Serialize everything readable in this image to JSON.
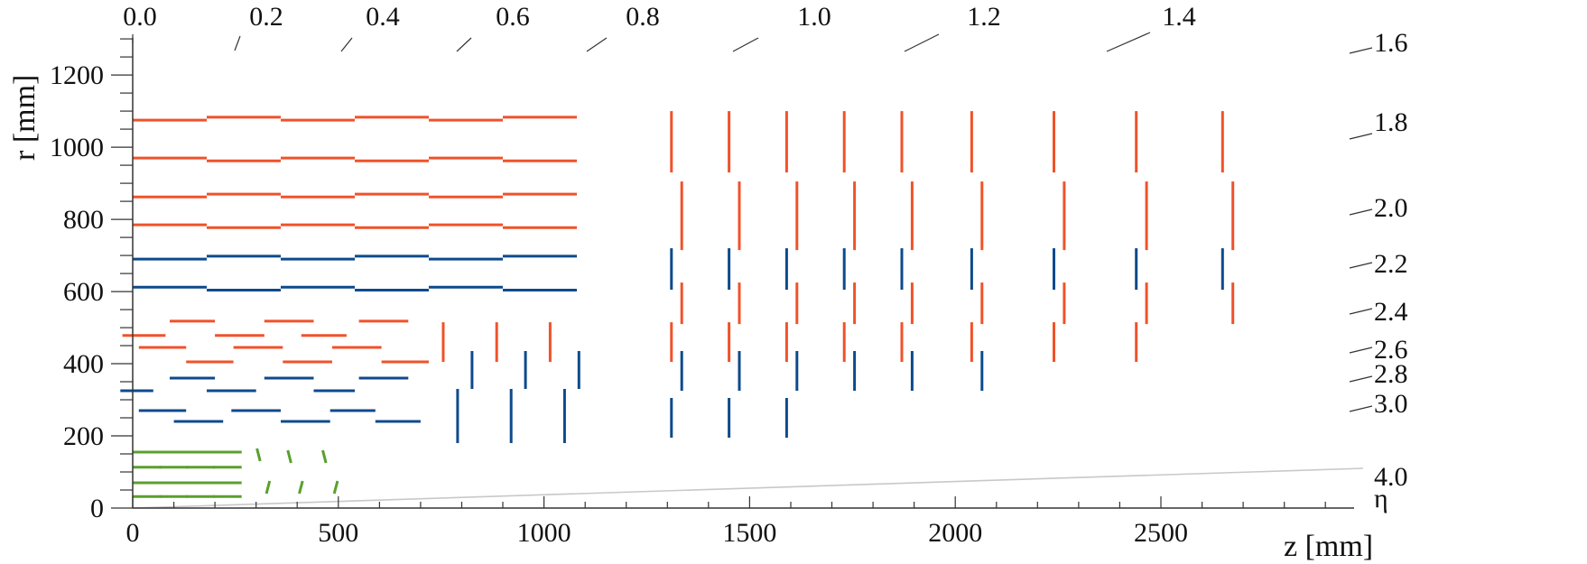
{
  "colors": {
    "strip": "#f0522a",
    "pixel": "#0d4a8c",
    "inner": "#5aa02c",
    "axis": "#333333",
    "eta_line": "#c8c8c8"
  },
  "axes": {
    "xlabel": "z [mm]",
    "ylabel": "r [mm]",
    "xlim": [
      0,
      2900
    ],
    "ylim": [
      0,
      1300
    ],
    "x_ticks": [
      "0",
      "500",
      "1000",
      "1500",
      "2000",
      "2500"
    ],
    "y_ticks": [
      "0",
      "200",
      "400",
      "600",
      "800",
      "1000",
      "1200"
    ],
    "eta_symbol": "η",
    "eta_top": [
      "0.0",
      "0.2",
      "0.4",
      "0.6",
      "0.8",
      "1.0",
      "1.2",
      "1.4"
    ],
    "eta_right": [
      "1.6",
      "1.8",
      "2.0",
      "2.2",
      "2.4",
      "2.6",
      "2.8",
      "3.0",
      "4.0"
    ]
  },
  "chart_data": {
    "type": "diagram",
    "barrel_layers": [
      {
        "detector": "strip",
        "segments": [
          [
            0,
            180,
            1075
          ],
          [
            180,
            360,
            1083
          ],
          [
            360,
            540,
            1075
          ],
          [
            540,
            720,
            1083
          ],
          [
            720,
            900,
            1075
          ],
          [
            900,
            1080,
            1083
          ]
        ]
      },
      {
        "detector": "strip",
        "segments": [
          [
            0,
            180,
            970
          ],
          [
            180,
            360,
            962
          ],
          [
            360,
            540,
            970
          ],
          [
            540,
            720,
            962
          ],
          [
            720,
            900,
            970
          ],
          [
            900,
            1080,
            962
          ]
        ]
      },
      {
        "detector": "strip",
        "segments": [
          [
            0,
            180,
            862
          ],
          [
            180,
            360,
            870
          ],
          [
            360,
            540,
            862
          ],
          [
            540,
            720,
            870
          ],
          [
            720,
            900,
            862
          ],
          [
            900,
            1080,
            870
          ]
        ]
      },
      {
        "detector": "strip",
        "segments": [
          [
            0,
            180,
            785
          ],
          [
            180,
            360,
            777
          ],
          [
            360,
            540,
            785
          ],
          [
            540,
            720,
            777
          ],
          [
            720,
            900,
            785
          ],
          [
            900,
            1080,
            777
          ]
        ]
      },
      {
        "detector": "pixel",
        "segments": [
          [
            0,
            180,
            690
          ],
          [
            180,
            360,
            698
          ],
          [
            360,
            540,
            690
          ],
          [
            540,
            720,
            698
          ],
          [
            720,
            900,
            690
          ],
          [
            900,
            1080,
            698
          ]
        ]
      },
      {
        "detector": "pixel",
        "segments": [
          [
            0,
            180,
            612
          ],
          [
            180,
            360,
            604
          ],
          [
            360,
            540,
            612
          ],
          [
            540,
            720,
            604
          ],
          [
            720,
            900,
            612
          ],
          [
            900,
            1080,
            604
          ]
        ]
      },
      {
        "detector": "strip",
        "segments": [
          [
            -25,
            80,
            478
          ],
          [
            90,
            200,
            518
          ],
          [
            200,
            320,
            478
          ],
          [
            320,
            440,
            518
          ],
          [
            410,
            520,
            478
          ],
          [
            550,
            670,
            518
          ]
        ]
      },
      {
        "detector": "strip",
        "segments": [
          [
            15,
            130,
            445
          ],
          [
            130,
            245,
            405
          ],
          [
            245,
            365,
            445
          ],
          [
            365,
            485,
            405
          ],
          [
            485,
            605,
            445
          ],
          [
            605,
            720,
            405
          ]
        ]
      },
      {
        "detector": "pixel",
        "segments": [
          [
            -30,
            50,
            325
          ],
          [
            90,
            200,
            360
          ],
          [
            180,
            300,
            325
          ],
          [
            320,
            440,
            360
          ],
          [
            440,
            540,
            325
          ],
          [
            550,
            670,
            360
          ]
        ]
      },
      {
        "detector": "pixel",
        "segments": [
          [
            15,
            130,
            270
          ],
          [
            100,
            220,
            240
          ],
          [
            240,
            360,
            270
          ],
          [
            360,
            480,
            240
          ],
          [
            480,
            590,
            270
          ],
          [
            590,
            700,
            240
          ]
        ]
      },
      {
        "detector": "inner",
        "segments": [
          [
            0,
            70,
            155
          ],
          [
            65,
            135,
            155
          ],
          [
            130,
            200,
            155
          ],
          [
            195,
            265,
            155
          ]
        ]
      },
      {
        "detector": "inner",
        "segments": [
          [
            0,
            70,
            113
          ],
          [
            65,
            135,
            113
          ],
          [
            130,
            200,
            113
          ],
          [
            195,
            265,
            113
          ]
        ]
      },
      {
        "detector": "inner",
        "segments": [
          [
            0,
            70,
            70
          ],
          [
            65,
            135,
            70
          ],
          [
            130,
            200,
            70
          ],
          [
            195,
            265,
            70
          ]
        ]
      },
      {
        "detector": "inner",
        "segments": [
          [
            0,
            70,
            32
          ],
          [
            65,
            135,
            32
          ],
          [
            130,
            200,
            32
          ],
          [
            195,
            265,
            32
          ]
        ]
      }
    ],
    "disk_segments": [
      {
        "detector": "strip",
        "segments": [
          [
            1310,
            930,
            1100
          ],
          [
            1450,
            930,
            1100
          ],
          [
            1590,
            930,
            1100
          ],
          [
            1730,
            930,
            1100
          ],
          [
            1870,
            930,
            1100
          ],
          [
            2040,
            930,
            1100
          ],
          [
            2240,
            930,
            1100
          ],
          [
            2440,
            930,
            1100
          ],
          [
            2650,
            930,
            1100
          ]
        ]
      },
      {
        "detector": "strip",
        "segments": [
          [
            1335,
            715,
            905
          ],
          [
            1475,
            715,
            905
          ],
          [
            1615,
            715,
            905
          ],
          [
            1755,
            715,
            905
          ],
          [
            1895,
            715,
            905
          ],
          [
            2065,
            715,
            905
          ],
          [
            2265,
            715,
            905
          ],
          [
            2465,
            715,
            905
          ],
          [
            2675,
            715,
            905
          ]
        ]
      },
      {
        "detector": "strip",
        "segments": [
          [
            1335,
            510,
            625
          ],
          [
            1475,
            510,
            625
          ],
          [
            1615,
            510,
            625
          ],
          [
            1755,
            510,
            625
          ],
          [
            1895,
            510,
            625
          ],
          [
            2065,
            510,
            625
          ],
          [
            2265,
            510,
            625
          ],
          [
            2465,
            510,
            625
          ],
          [
            2675,
            510,
            625
          ]
        ]
      },
      {
        "detector": "strip",
        "segments": [
          [
            1310,
            405,
            515
          ],
          [
            1450,
            405,
            515
          ],
          [
            1590,
            405,
            515
          ],
          [
            1730,
            405,
            515
          ],
          [
            1870,
            405,
            515
          ],
          [
            2040,
            405,
            515
          ],
          [
            2240,
            405,
            515
          ],
          [
            2440,
            405,
            515
          ]
        ]
      },
      {
        "detector": "strip",
        "segments": [
          [
            755,
            405,
            515
          ],
          [
            885,
            405,
            515
          ],
          [
            1015,
            405,
            515
          ]
        ]
      },
      {
        "detector": "pixel",
        "segments": [
          [
            1310,
            605,
            720
          ],
          [
            1450,
            605,
            720
          ],
          [
            1590,
            605,
            720
          ],
          [
            1730,
            605,
            720
          ],
          [
            1870,
            605,
            720
          ],
          [
            2040,
            605,
            720
          ],
          [
            2240,
            605,
            720
          ],
          [
            2440,
            605,
            720
          ],
          [
            2650,
            605,
            720
          ]
        ]
      },
      {
        "detector": "pixel",
        "segments": [
          [
            1335,
            325,
            435
          ],
          [
            1475,
            325,
            435
          ],
          [
            1615,
            325,
            435
          ],
          [
            1755,
            325,
            435
          ],
          [
            1895,
            325,
            435
          ],
          [
            2065,
            325,
            435
          ]
        ]
      },
      {
        "detector": "pixel",
        "segments": [
          [
            1310,
            195,
            305
          ],
          [
            1450,
            195,
            305
          ],
          [
            1590,
            195,
            305
          ]
        ]
      },
      {
        "detector": "pixel",
        "segments": [
          [
            825,
            330,
            435
          ],
          [
            955,
            330,
            435
          ],
          [
            1085,
            330,
            435
          ]
        ]
      },
      {
        "detector": "pixel",
        "segments": [
          [
            790,
            180,
            330
          ],
          [
            920,
            180,
            330
          ],
          [
            1050,
            180,
            330
          ]
        ]
      }
    ],
    "inner_tilted": [
      [
        310,
        130,
        302,
        165
      ],
      [
        325,
        40,
        333,
        75
      ],
      [
        385,
        125,
        377,
        160
      ],
      [
        405,
        40,
        413,
        75
      ],
      [
        470,
        125,
        462,
        160
      ],
      [
        490,
        40,
        498,
        75
      ]
    ]
  }
}
